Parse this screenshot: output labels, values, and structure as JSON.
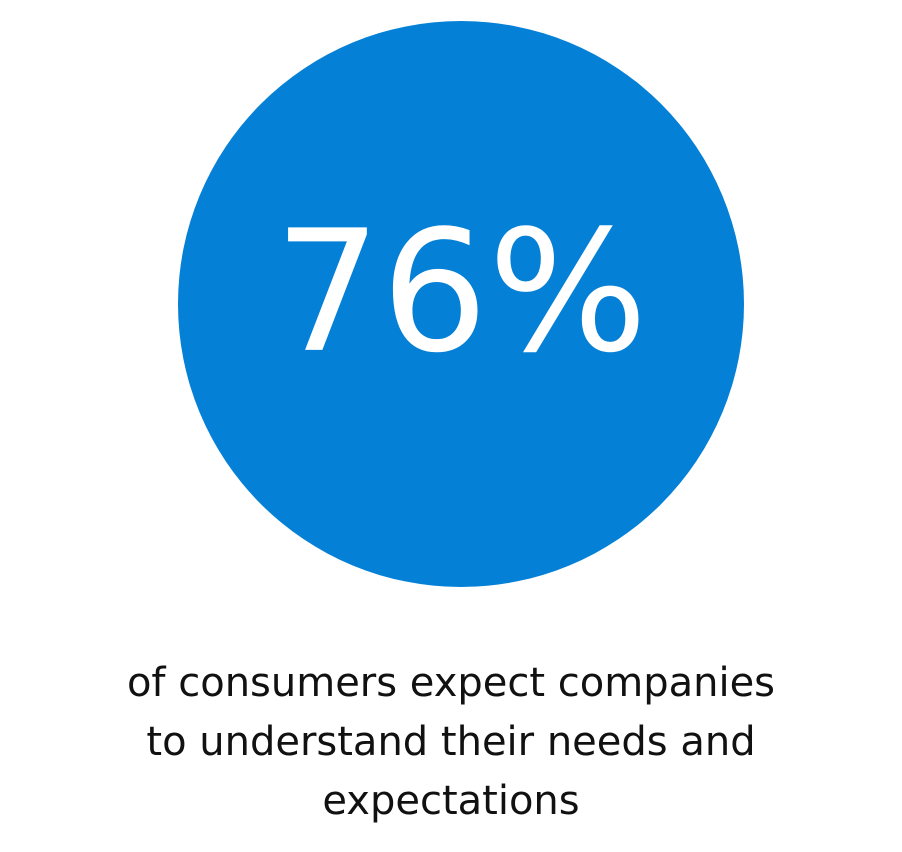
{
  "stat": {
    "value": "76%"
  },
  "caption_lines": [
    "of consumers expect companies",
    "to understand their needs and",
    "expectations"
  ]
}
